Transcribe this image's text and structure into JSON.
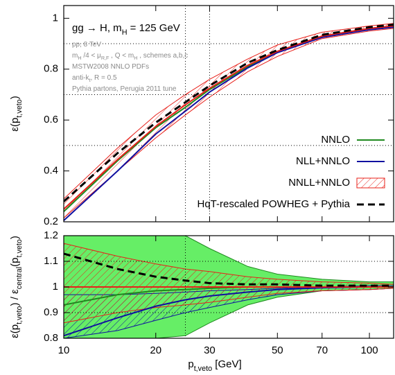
{
  "chart_data": [
    {
      "type": "line",
      "annotations": [
        [
          {
            "text": "gg → H, m"
          },
          {
            "sub": "H"
          },
          {
            "text": " = 125 GeV"
          }
        ],
        [
          {
            "text": "pp, 8 TeV"
          }
        ],
        [
          {
            "text": "m"
          },
          {
            "sub": "H"
          },
          {
            "text": " /4 < μ"
          },
          {
            "sub": "R,F"
          },
          {
            "text": " , Q < m"
          },
          {
            "sub": "H"
          },
          {
            "text": " , schemes a,b,c"
          }
        ],
        [
          {
            "text": "MSTW2008 NNLO PDFs"
          }
        ],
        [
          {
            "text": "anti-k"
          },
          {
            "sub": "t"
          },
          {
            "text": ", R = 0.5"
          }
        ],
        [
          {
            "text": "Pythia partons, Perugia 2011 tune"
          }
        ]
      ],
      "ylabel": [
        {
          "text": "ε(p"
        },
        {
          "sub": "t,veto"
        },
        {
          "text": ")"
        }
      ],
      "log_x": true,
      "xlim": [
        10,
        120
      ],
      "xticks": [
        10,
        20,
        30,
        50,
        70,
        100
      ],
      "ylim": [
        0.2,
        1.05
      ],
      "yticks": [
        0.2,
        0.4,
        0.6,
        0.8,
        1
      ],
      "vlines": [
        25,
        30
      ],
      "hlines": [
        0.5,
        0.7,
        0.9
      ],
      "legend": "center right",
      "x": [
        10,
        15,
        20,
        25,
        30,
        40,
        50,
        70,
        100,
        120
      ],
      "series": [
        {
          "name": "NNLO",
          "color": "#1f8a1f",
          "values": [
            0.24,
            0.44,
            0.57,
            0.65,
            0.72,
            0.81,
            0.87,
            0.93,
            0.96,
            0.97
          ]
        },
        {
          "name": "NLL+NNLO",
          "color": "#1010a0",
          "values": [
            0.205,
            0.4,
            0.545,
            0.635,
            0.71,
            0.805,
            0.865,
            0.925,
            0.955,
            0.965
          ]
        },
        {
          "name": "NNLL+NNLO",
          "color": "#e8201a",
          "band": "hatch",
          "values": [
            0.25,
            0.445,
            0.575,
            0.66,
            0.725,
            0.815,
            0.87,
            0.93,
            0.96,
            0.97
          ],
          "lower": [
            0.215,
            0.4,
            0.53,
            0.62,
            0.69,
            0.79,
            0.85,
            0.92,
            0.95,
            0.96
          ],
          "upper": [
            0.29,
            0.49,
            0.62,
            0.7,
            0.76,
            0.84,
            0.895,
            0.945,
            0.97,
            0.98
          ]
        },
        {
          "name": "HqT-rescaled POWHEG + Pythia",
          "color": "#000000",
          "dashed": true,
          "values": [
            0.28,
            0.47,
            0.59,
            0.67,
            0.735,
            0.825,
            0.875,
            0.935,
            0.965,
            0.975
          ]
        }
      ]
    },
    {
      "type": "line",
      "ylabel": [
        {
          "text": "ε(p"
        },
        {
          "sub": "t,veto"
        },
        {
          "text": ") / ε"
        },
        {
          "sub": "central"
        },
        {
          "text": "(p"
        },
        {
          "sub": "t,veto"
        },
        {
          "text": ")"
        }
      ],
      "xlabel": [
        {
          "text": "p"
        },
        {
          "sub": "t,veto"
        },
        {
          "text": " [GeV]"
        }
      ],
      "log_x": true,
      "xlim": [
        10,
        120
      ],
      "xticks": [
        10,
        20,
        30,
        50,
        70,
        100
      ],
      "ylim": [
        0.8,
        1.2
      ],
      "yticks": [
        0.8,
        0.9,
        1,
        1.1,
        1.2
      ],
      "vlines": [
        25
      ],
      "hlines": [
        0.9,
        1.1
      ],
      "x": [
        10,
        15,
        20,
        25,
        30,
        40,
        50,
        70,
        100,
        120
      ],
      "series": [
        {
          "color": "#1f8a1f",
          "band": "fill",
          "band_color": "#66ee66",
          "values": [
            0.93,
            0.97,
            0.985,
            0.99,
            0.995,
            1,
            1,
            1,
            1,
            1
          ],
          "lower": [
            0.8,
            0.8,
            0.8,
            0.81,
            0.86,
            0.93,
            0.96,
            0.985,
            0.99,
            0.995
          ],
          "upper": [
            1.2,
            1.2,
            1.2,
            1.2,
            1.15,
            1.08,
            1.05,
            1.03,
            1.02,
            1.02
          ]
        },
        {
          "color": "#1010a0",
          "band": "hatch",
          "values": [
            0.81,
            0.88,
            0.925,
            0.95,
            0.965,
            0.98,
            0.99,
            0.997,
            1,
            1
          ],
          "lower": [
            0.8,
            0.83,
            0.87,
            0.9,
            0.92,
            0.95,
            0.97,
            0.985,
            0.99,
            0.995
          ],
          "upper": [
            0.97,
            0.97,
            0.975,
            0.98,
            0.985,
            0.99,
            0.995,
            1,
            1.005,
            1.005
          ]
        },
        {
          "color": "#e8201a",
          "band": "hatch",
          "values": [
            1,
            1,
            1,
            1,
            1,
            1,
            1,
            1,
            1,
            1
          ],
          "lower": [
            0.86,
            0.9,
            0.92,
            0.93,
            0.94,
            0.96,
            0.975,
            0.985,
            0.99,
            0.995
          ],
          "upper": [
            1.17,
            1.12,
            1.09,
            1.07,
            1.06,
            1.04,
            1.03,
            1.02,
            1.015,
            1.01
          ]
        },
        {
          "color": "#000000",
          "dashed": true,
          "values": [
            1.13,
            1.07,
            1.04,
            1.025,
            1.015,
            1.01,
            1.01,
            1.005,
            1.005,
            1.005
          ]
        }
      ]
    }
  ]
}
